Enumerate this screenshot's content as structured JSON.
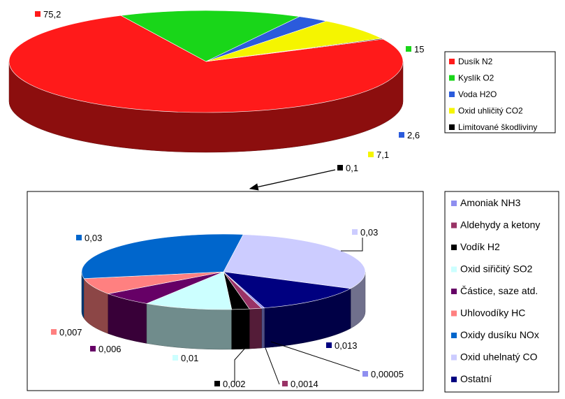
{
  "chart_data": [
    {
      "type": "pie",
      "title": "",
      "slices": [
        {
          "label": "Dusík N2",
          "value": 75.2,
          "label_text": "75,2",
          "color": "#ff1a1a"
        },
        {
          "label": "Kyslík O2",
          "value": 15,
          "label_text": "15",
          "color": "#19d619"
        },
        {
          "label": "Voda H2O",
          "value": 2.6,
          "label_text": "2,6",
          "color": "#2b5bdc"
        },
        {
          "label": "Oxid uhličitý CO2",
          "value": 7.1,
          "label_text": "7,1",
          "color": "#f5f500"
        },
        {
          "label": "Limitované škodliviny",
          "value": 0.1,
          "label_text": "0,1",
          "color": "#000000"
        }
      ],
      "legend_position": "right"
    },
    {
      "type": "pie",
      "title": "",
      "slices": [
        {
          "label": "Amoniak NH3",
          "value": 5e-05,
          "label_text": "0,00005",
          "color": "#8f8ff0"
        },
        {
          "label": "Aldehydy a ketony",
          "value": 0.0014,
          "label_text": "0,0014",
          "color": "#993366"
        },
        {
          "label": "Vodík H2",
          "value": 0.002,
          "label_text": "0,002",
          "color": "#000000"
        },
        {
          "label": "Oxid siřičitý SO2",
          "value": 0.01,
          "label_text": "0,01",
          "color": "#ccffff"
        },
        {
          "label": "Částice, saze atd.",
          "value": 0.006,
          "label_text": "0,006",
          "color": "#660066"
        },
        {
          "label": "Uhlovodíky HC",
          "value": 0.007,
          "label_text": "0,007",
          "color": "#ff8080"
        },
        {
          "label": "Oxidy dusíku NOx",
          "value": 0.03,
          "label_text": "0,03",
          "color": "#0066cc"
        },
        {
          "label": "Oxid uhelnatý CO",
          "value": 0.03,
          "label_text": "0,03",
          "color": "#ccccff"
        },
        {
          "label": "Ostatní",
          "value": 0.013,
          "label_text": "0,013",
          "color": "#000080"
        }
      ],
      "legend_position": "right"
    }
  ]
}
